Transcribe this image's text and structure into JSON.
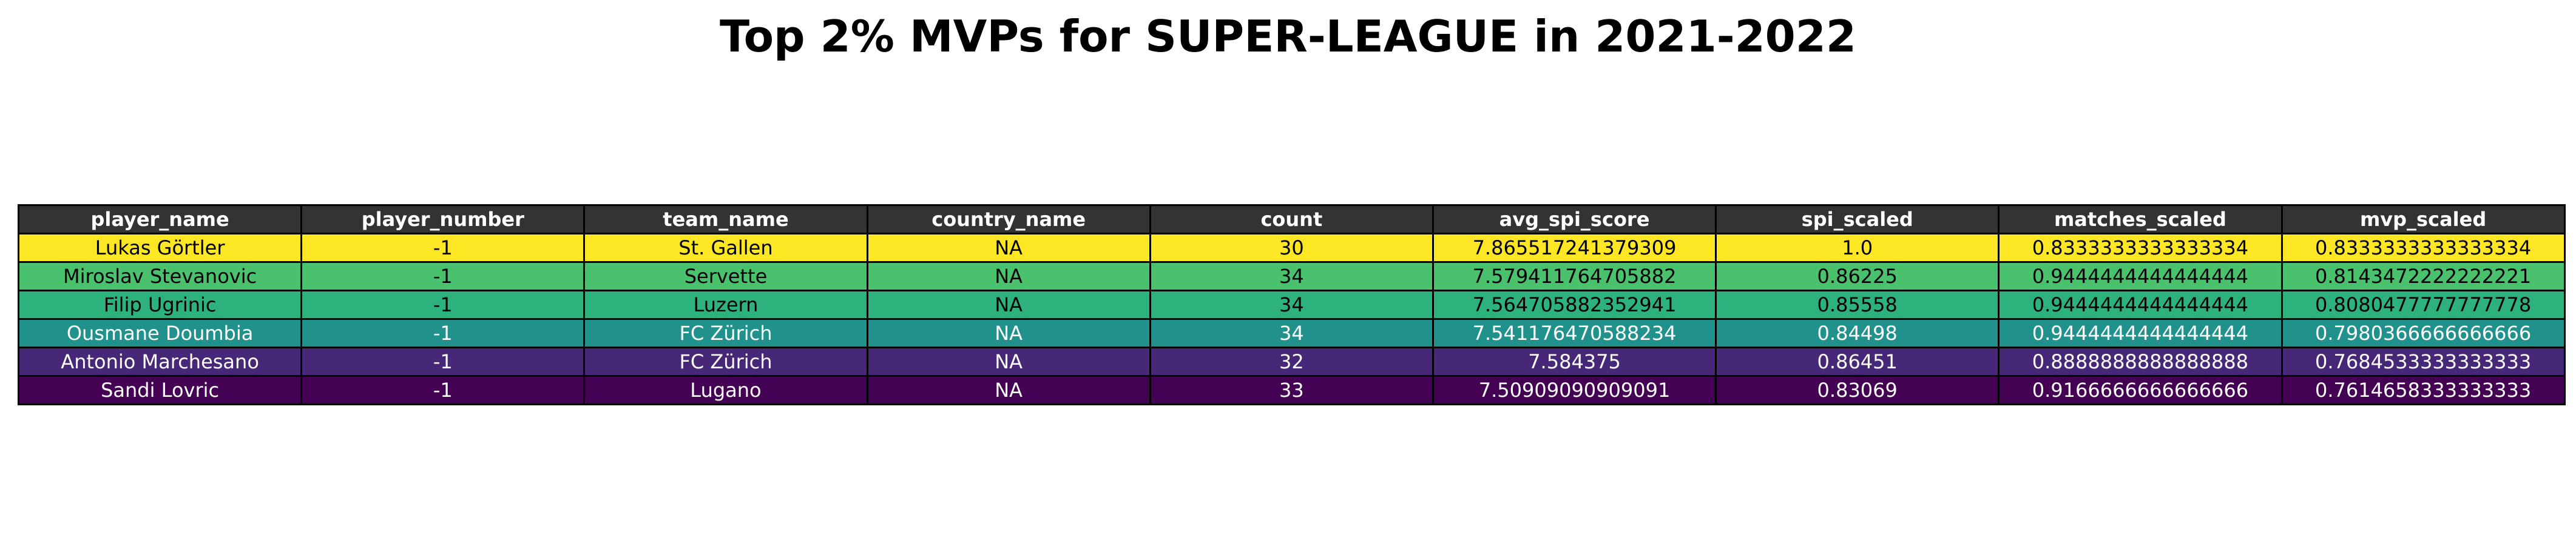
{
  "chart_data": {
    "type": "table",
    "title": "Top 2% MVPs for SUPER-LEAGUE in 2021-2022",
    "header_color": "#333333",
    "columns": [
      "player_name",
      "player_number",
      "team_name",
      "country_name",
      "count",
      "avg_spi_score",
      "spi_scaled",
      "matches_scaled",
      "mvp_scaled"
    ],
    "rows": [
      {
        "cells": [
          "Lukas Görtler",
          "-1",
          "St. Gallen",
          "NA",
          "30",
          "7.865517241379309",
          "1.0",
          "0.8333333333333334",
          "0.8333333333333334"
        ],
        "color": "#fde725",
        "text_color": "#000000"
      },
      {
        "cells": [
          "Miroslav Stevanovic",
          "-1",
          "Servette",
          "NA",
          "34",
          "7.579411764705882",
          "0.86225",
          "0.9444444444444444",
          "0.8143472222222221"
        ],
        "color": "#4ac16d",
        "text_color": "#000000"
      },
      {
        "cells": [
          "Filip Ugrinic",
          "-1",
          "Luzern",
          "NA",
          "34",
          "7.564705882352941",
          "0.85558",
          "0.9444444444444444",
          "0.8080477777777778"
        ],
        "color": "#2db27d",
        "text_color": "#000000"
      },
      {
        "cells": [
          "Ousmane Doumbia",
          "-1",
          "FC Zürich",
          "NA",
          "34",
          "7.541176470588234",
          "0.84498",
          "0.9444444444444444",
          "0.7980366666666666"
        ],
        "color": "#21918c",
        "text_color": "#ffffff"
      },
      {
        "cells": [
          "Antonio Marchesano",
          "-1",
          "FC Zürich",
          "NA",
          "32",
          "7.584375",
          "0.86451",
          "0.8888888888888888",
          "0.7684533333333333"
        ],
        "color": "#472777",
        "text_color": "#ffffff"
      },
      {
        "cells": [
          "Sandi Lovric",
          "-1",
          "Lugano",
          "NA",
          "33",
          "7.50909090909091",
          "0.83069",
          "0.9166666666666666",
          "0.7614658333333333"
        ],
        "color": "#440154",
        "text_color": "#ffffff"
      }
    ]
  }
}
